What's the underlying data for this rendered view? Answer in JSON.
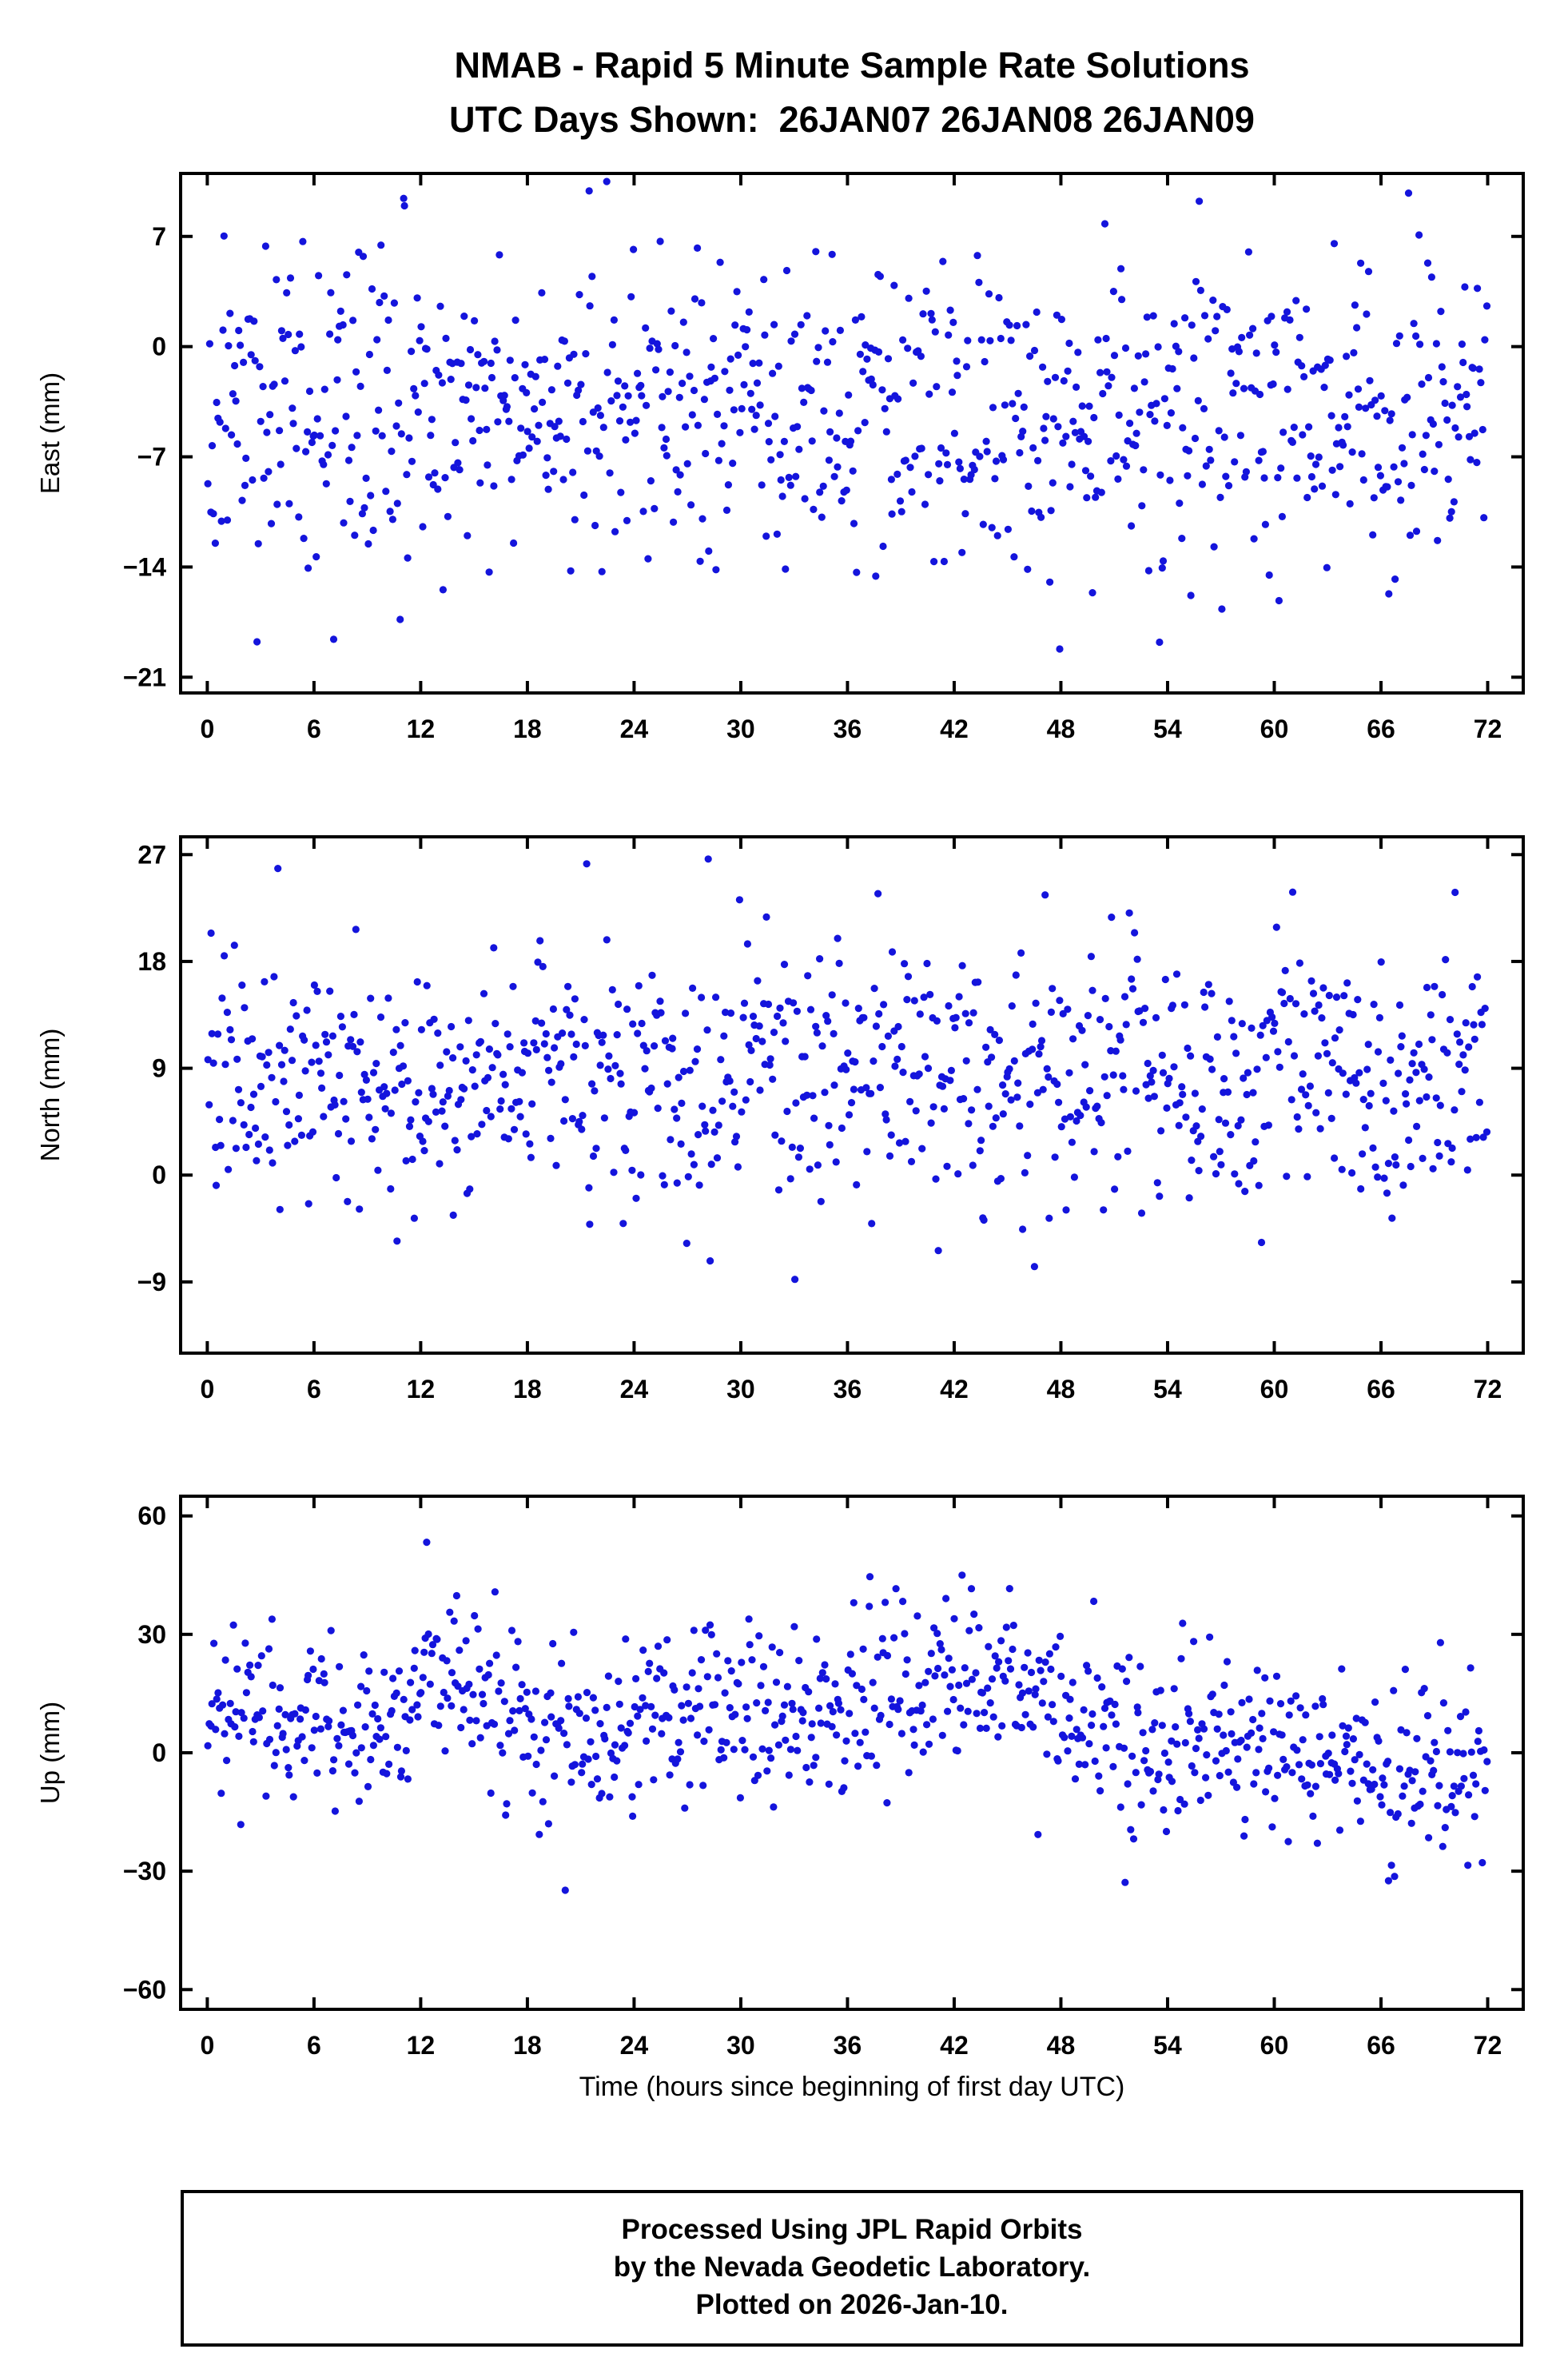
{
  "title": {
    "line1": "NMAB - Rapid 5 Minute Sample Rate Solutions",
    "line2": "UTC Days Shown:  26JAN07 26JAN08 26JAN09"
  },
  "xlabel": "Time (hours since beginning of first day UTC)",
  "footer": {
    "line1": "Processed Using JPL Rapid Orbits",
    "line2": "by the Nevada Geodetic Laboratory.",
    "line3": "Plotted on 2026-Jan-10."
  },
  "style": {
    "point_color": "#1414dc",
    "frame_color": "#000000",
    "background": "#ffffff"
  },
  "chart_data": [
    {
      "type": "scatter",
      "id": "east",
      "title": "",
      "ylabel": "East (mm)",
      "xlabel": "",
      "xlim": [
        -1.5,
        74
      ],
      "ylim": [
        -22,
        11
      ],
      "xticks": [
        0,
        6,
        12,
        18,
        24,
        30,
        36,
        42,
        48,
        54,
        60,
        66,
        72
      ],
      "yticks": [
        7,
        0,
        -7,
        -14,
        -21
      ],
      "grid": false,
      "legend": false,
      "n_points": 864,
      "sample_interval_minutes": 5,
      "x_span_hours": 72,
      "mean_curve": [
        [
          0,
          -4.5
        ],
        [
          72,
          -4.5
        ]
      ],
      "std": 4.8,
      "outlier_prob": 0.012,
      "outlier_scale": 2.3,
      "seed": 11
    },
    {
      "type": "scatter",
      "id": "north",
      "title": "",
      "ylabel": "North (mm)",
      "xlabel": "",
      "xlim": [
        -1.5,
        74
      ],
      "ylim": [
        -15,
        28.5
      ],
      "xticks": [
        0,
        6,
        12,
        18,
        24,
        30,
        36,
        42,
        48,
        54,
        60,
        66,
        72
      ],
      "yticks": [
        27,
        18,
        9,
        0,
        -9
      ],
      "grid": false,
      "legend": false,
      "n_points": 864,
      "sample_interval_minutes": 5,
      "x_span_hours": 72,
      "mean_curve": [
        [
          0,
          8.3
        ],
        [
          72,
          8.3
        ]
      ],
      "std": 5.4,
      "outlier_prob": 0.012,
      "outlier_scale": 2.1,
      "seed": 22
    },
    {
      "type": "scatter",
      "id": "up",
      "title": "",
      "ylabel": "Up (mm)",
      "xlabel": "Time (hours since beginning of first day UTC)",
      "xlim": [
        -1.5,
        74
      ],
      "ylim": [
        -65,
        65
      ],
      "xticks": [
        0,
        6,
        12,
        18,
        24,
        30,
        36,
        42,
        48,
        54,
        60,
        66,
        72
      ],
      "yticks": [
        60,
        30,
        0,
        -30,
        -60
      ],
      "grid": false,
      "legend": false,
      "n_points": 864,
      "sample_interval_minutes": 5,
      "x_span_hours": 72,
      "mean_curve": [
        [
          0,
          8
        ],
        [
          4,
          10
        ],
        [
          8,
          6
        ],
        [
          12,
          14
        ],
        [
          15,
          18
        ],
        [
          18,
          8
        ],
        [
          21,
          2
        ],
        [
          24,
          6
        ],
        [
          27,
          12
        ],
        [
          30,
          8
        ],
        [
          33,
          10
        ],
        [
          36,
          12
        ],
        [
          39,
          16
        ],
        [
          42,
          18
        ],
        [
          45,
          20
        ],
        [
          48,
          8
        ],
        [
          51,
          4
        ],
        [
          54,
          2
        ],
        [
          57,
          6
        ],
        [
          60,
          2
        ],
        [
          63,
          -2
        ],
        [
          66,
          -6
        ],
        [
          69,
          -4
        ],
        [
          72,
          -8
        ]
      ],
      "std": 11,
      "outlier_prob": 0.014,
      "outlier_scale": 2.4,
      "seed": 33
    }
  ]
}
